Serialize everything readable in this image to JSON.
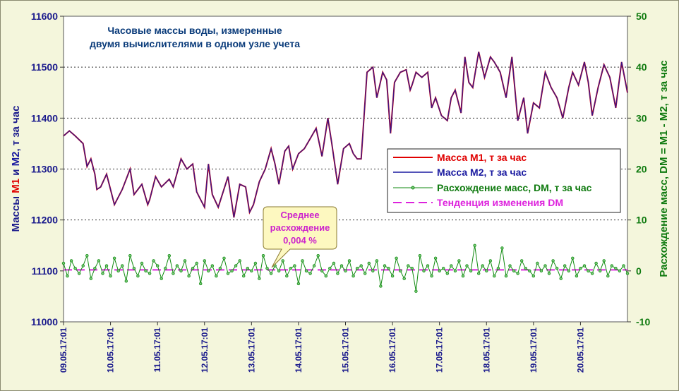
{
  "chart_data": {
    "type": "line",
    "title": [
      "Часовые массы воды, измеренные",
      "двумя вычислителями в одном узле учета"
    ],
    "y_left": {
      "label_parts": [
        {
          "text": "Массы ",
          "color": "#1a1a8c"
        },
        {
          "text": "M1",
          "color": "#e00000"
        },
        {
          "text": " и ",
          "color": "#1a1a8c"
        },
        {
          "text": "M2",
          "color": "#1a1aa0"
        },
        {
          "text": ", т за час",
          "color": "#1a1a8c"
        }
      ],
      "range": [
        11000,
        11600
      ],
      "ticks": [
        "11000",
        "11100",
        "11200",
        "11300",
        "11400",
        "11500",
        "11600"
      ],
      "gridlines": [
        11200,
        11300,
        11400,
        11500
      ]
    },
    "y_right": {
      "label": "Расхождение масс, DM = M1 - M2, т за час",
      "range": [
        -10,
        50
      ],
      "ticks": [
        "-10",
        "0",
        "10",
        "20",
        "30",
        "40",
        "50"
      ],
      "negative_tick_color": "#e00000"
    },
    "x": {
      "ticks": [
        "09.05.17:01",
        "10.05.17:01",
        "11.05.17:01",
        "12.05.17:01",
        "13.05.17:01",
        "14.05.17:01",
        "15.05.17:01",
        "16.05.17:01",
        "17.05.17:01",
        "18.05.17:01",
        "19.05.17:01",
        "20.05.17:01"
      ],
      "range_hours": [
        0,
        288
      ]
    },
    "legend": [
      {
        "label": "Масса M1, т за час",
        "color": "#e00000",
        "style": "line"
      },
      {
        "label": "Масса M2, т за час",
        "color": "#1a1aa0",
        "style": "line"
      },
      {
        "label": "Расхождение масс, DM, т за час",
        "color": "#0f8a0f",
        "style": "line-marker"
      },
      {
        "label": "Тенденция изменения DM",
        "color": "#dd22dd",
        "style": "dashed"
      }
    ],
    "legend_position": "center-right",
    "annotation": [
      "Среднее",
      "расхождение",
      "0,004 %"
    ],
    "series": [
      {
        "name": "Масса M2, т за час",
        "axis": "left",
        "x_hours": [
          0,
          3,
          6,
          10,
          12,
          14,
          16,
          17,
          19,
          22,
          26,
          30,
          32,
          34,
          36,
          40,
          43,
          44,
          47,
          50,
          54,
          56,
          60,
          63,
          66,
          68,
          70,
          72,
          74,
          76,
          79,
          84,
          87,
          90,
          93,
          95,
          97,
          100,
          103,
          106,
          108,
          110,
          113,
          115,
          117,
          120,
          123,
          126,
          129,
          132,
          135,
          137,
          140,
          143,
          146,
          148,
          150,
          152,
          155,
          158,
          160,
          163,
          165,
          167,
          169,
          172,
          175,
          177,
          178,
          180,
          183,
          186,
          188,
          190,
          193,
          196,
          198,
          200,
          203,
          205,
          207,
          209,
          212,
          215,
          218,
          220,
          223,
          226,
          229,
          232,
          235,
          237,
          240,
          243,
          246,
          249,
          252,
          255,
          258,
          260,
          263,
          266,
          268,
          270,
          273,
          276,
          279,
          282,
          285,
          288
        ],
        "values": [
          11365,
          11375,
          11365,
          11350,
          11305,
          11320,
          11290,
          11260,
          11265,
          11290,
          11230,
          11260,
          11280,
          11300,
          11250,
          11270,
          11230,
          11240,
          11285,
          11265,
          11280,
          11265,
          11320,
          11300,
          11310,
          11255,
          11240,
          11225,
          11310,
          11250,
          11225,
          11285,
          11205,
          11270,
          11265,
          11215,
          11230,
          11275,
          11300,
          11340,
          11310,
          11270,
          11335,
          11345,
          11300,
          11330,
          11340,
          11360,
          11380,
          11325,
          11400,
          11350,
          11270,
          11340,
          11350,
          11330,
          11320,
          11320,
          11490,
          11500,
          11440,
          11490,
          11475,
          11370,
          11470,
          11490,
          11495,
          11455,
          11465,
          11490,
          11480,
          11490,
          11420,
          11440,
          11405,
          11395,
          11440,
          11455,
          11410,
          11520,
          11470,
          11460,
          11530,
          11480,
          11520,
          11510,
          11490,
          11440,
          11520,
          11395,
          11440,
          11370,
          11430,
          11420,
          11490,
          11460,
          11440,
          11400,
          11460,
          11490,
          11465,
          11510,
          11470,
          11405,
          11460,
          11505,
          11480,
          11420,
          11510,
          11450
        ],
        "color": "#1a1aa0"
      },
      {
        "name": "Расхождение масс, DM, т за час",
        "axis": "right",
        "x_hours": [
          0,
          2,
          4,
          6,
          8,
          10,
          12,
          14,
          16,
          18,
          20,
          22,
          24,
          26,
          28,
          30,
          32,
          34,
          36,
          38,
          40,
          42,
          44,
          46,
          48,
          50,
          52,
          54,
          56,
          58,
          60,
          62,
          64,
          66,
          68,
          70,
          72,
          74,
          76,
          78,
          80,
          82,
          84,
          86,
          88,
          90,
          92,
          94,
          96,
          98,
          100,
          102,
          104,
          106,
          108,
          110,
          112,
          114,
          116,
          118,
          120,
          122,
          124,
          126,
          128,
          130,
          132,
          134,
          136,
          138,
          140,
          142,
          144,
          146,
          148,
          150,
          152,
          154,
          156,
          158,
          160,
          162,
          164,
          166,
          168,
          170,
          172,
          174,
          176,
          178,
          180,
          182,
          184,
          186,
          188,
          190,
          192,
          194,
          196,
          198,
          200,
          202,
          204,
          206,
          208,
          210,
          212,
          214,
          216,
          218,
          220,
          222,
          224,
          226,
          228,
          230,
          232,
          234,
          236,
          238,
          240,
          242,
          244,
          246,
          248,
          250,
          252,
          254,
          256,
          258,
          260,
          262,
          264,
          266,
          268,
          270,
          272,
          274,
          276,
          278,
          280,
          282,
          284,
          286,
          288
        ],
        "values": [
          1.5,
          -1,
          2,
          0.5,
          -0.5,
          1,
          3,
          -1.5,
          0.5,
          2,
          -0.5,
          1,
          -1,
          2.5,
          0,
          1,
          -2,
          3,
          0.5,
          -1,
          1.5,
          0,
          -0.5,
          2,
          1,
          -1.5,
          0.5,
          3,
          -0.5,
          1,
          0,
          2,
          -1,
          0.5,
          1.5,
          -2.5,
          2,
          0,
          1,
          -1,
          0.5,
          2.5,
          -0.5,
          0,
          1,
          2,
          -1,
          0.5,
          0,
          1.5,
          -1.5,
          3,
          0.5,
          -0.5,
          1,
          0,
          2,
          -1,
          0.5,
          1,
          -2.5,
          2,
          0,
          -0.5,
          1,
          3,
          0,
          -1,
          0.5,
          1.5,
          -0.5,
          1,
          0,
          2,
          -1,
          0.5,
          1,
          -0.5,
          1.5,
          0,
          2,
          -3,
          1,
          0.5,
          -1,
          2.5,
          0,
          -1.5,
          1,
          0.5,
          -4,
          3,
          0,
          1,
          -1,
          2.5,
          0,
          0.5,
          -0.5,
          1,
          0,
          2,
          -1,
          1,
          0,
          5,
          -0.5,
          1,
          0,
          2,
          -1,
          0.5,
          4.5,
          -1,
          1,
          0,
          -0.5,
          2,
          0.5,
          0,
          -1,
          1.5,
          0,
          1,
          -0.5,
          2,
          0.5,
          -1.5,
          1,
          0,
          2.5,
          -1,
          0.5,
          1,
          0,
          -0.5,
          1.5,
          0,
          2,
          -1,
          1,
          0.5,
          0,
          1,
          -0.5
        ],
        "color": "#0f8a0f"
      },
      {
        "name": "Тенденция изменения DM",
        "axis": "right",
        "x_hours": [
          0,
          288
        ],
        "values": [
          0.2,
          0.2
        ],
        "color": "#dd22dd"
      }
    ]
  }
}
